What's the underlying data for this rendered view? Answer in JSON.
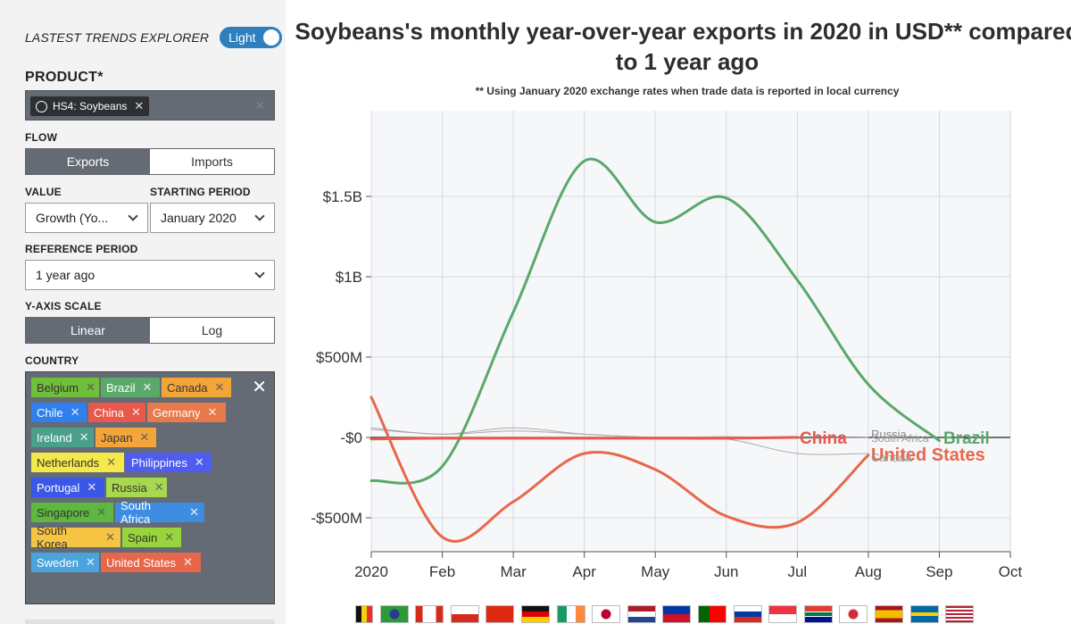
{
  "sidebar": {
    "explorer_title": "LASTEST TRENDS EXPLORER",
    "theme_toggle": "Light",
    "product_label": "PRODUCT*",
    "product_tag": "HS4: Soybeans",
    "flow_label": "FLOW",
    "flow_options": [
      "Exports",
      "Imports"
    ],
    "flow_selected": "Exports",
    "value_label": "VALUE",
    "value_selected": "Growth (Yo...",
    "starting_period_label": "STARTING PERIOD",
    "starting_period_selected": "January 2020",
    "reference_period_label": "REFERENCE PERIOD",
    "reference_period_selected": "1 year ago",
    "yaxis_scale_label": "Y-AXIS SCALE",
    "yaxis_scale_options": [
      "Linear",
      "Log"
    ],
    "yaxis_scale_selected": "Linear",
    "country_label": "COUNTRY",
    "countries": [
      {
        "name": "Belgium",
        "color": "#6fbf3b"
      },
      {
        "name": "Brazil",
        "color": "#5aa86a"
      },
      {
        "name": "Canada",
        "color": "#f4a53a"
      },
      {
        "name": "Chile",
        "color": "#2f80ed"
      },
      {
        "name": "China",
        "color": "#e8584b"
      },
      {
        "name": "Germany",
        "color": "#e8794b"
      },
      {
        "name": "Ireland",
        "color": "#4aa08d"
      },
      {
        "name": "Japan",
        "color": "#f4a53a"
      },
      {
        "name": "Netherlands",
        "color": "#f5e84a"
      },
      {
        "name": "Philippines",
        "color": "#4e5cf0"
      },
      {
        "name": "Portugal",
        "color": "#3b57e8"
      },
      {
        "name": "Russia",
        "color": "#a8d84e"
      },
      {
        "name": "Singapore",
        "color": "#5cb83f"
      },
      {
        "name": "South Africa",
        "color": "#3f8de0"
      },
      {
        "name": "South Korea",
        "color": "#f5c443"
      },
      {
        "name": "Spain",
        "color": "#98d43e"
      },
      {
        "name": "Sweden",
        "color": "#4aa3dc"
      },
      {
        "name": "United States",
        "color": "#e8674b"
      }
    ]
  },
  "main": {
    "title_line1": "Soybeans's monthly year-over-year exports in 2020 in USD** compared",
    "title_line2": "to 1 year ago",
    "subtitle": "** Using January 2020 exchange rates when trade data is reported in local currency"
  },
  "chart_data": {
    "type": "line",
    "x": [
      "2020",
      "Feb",
      "Mar",
      "Apr",
      "May",
      "Jun",
      "Jul",
      "Aug",
      "Sep",
      "Oct"
    ],
    "yticks": [
      {
        "value": 1500000000,
        "label": "$1.5B"
      },
      {
        "value": 1000000000,
        "label": "$1B"
      },
      {
        "value": 500000000,
        "label": "$500M"
      },
      {
        "value": 0,
        "label": "-$0"
      },
      {
        "value": -500000000,
        "label": "-$500M"
      }
    ],
    "ylim": [
      -700000000,
      1980000000
    ],
    "grid": true,
    "series": [
      {
        "name": "Brazil",
        "color": "#5aa86a",
        "values": [
          -270000000,
          -180000000,
          780000000,
          1720000000,
          1340000000,
          1490000000,
          980000000,
          330000000,
          -20000000,
          null
        ]
      },
      {
        "name": "United States",
        "color": "#e8674b",
        "values": [
          250000000,
          -620000000,
          -400000000,
          -100000000,
          -200000000,
          -490000000,
          -530000000,
          -110000000,
          null,
          null
        ]
      },
      {
        "name": "China",
        "color": "#e8584b",
        "values": [
          -10000000,
          -5000000,
          -5000000,
          -5000000,
          -5000000,
          -5000000,
          0,
          null,
          null,
          null
        ]
      },
      {
        "name": "Russia",
        "color": "#aaaaaa",
        "values": [
          50000000,
          20000000,
          40000000,
          20000000,
          0,
          5000000,
          -5000000,
          0,
          null,
          null
        ]
      },
      {
        "name": "South Africa",
        "color": "#aaaaaa",
        "values": [
          60000000,
          20000000,
          60000000,
          20000000,
          0,
          -10000000,
          -100000000,
          -100000000,
          null,
          null
        ]
      }
    ],
    "end_labels": [
      "China",
      "Russia",
      "South Africa",
      "Brazil",
      "United States",
      "Canada"
    ],
    "legend": "none"
  }
}
